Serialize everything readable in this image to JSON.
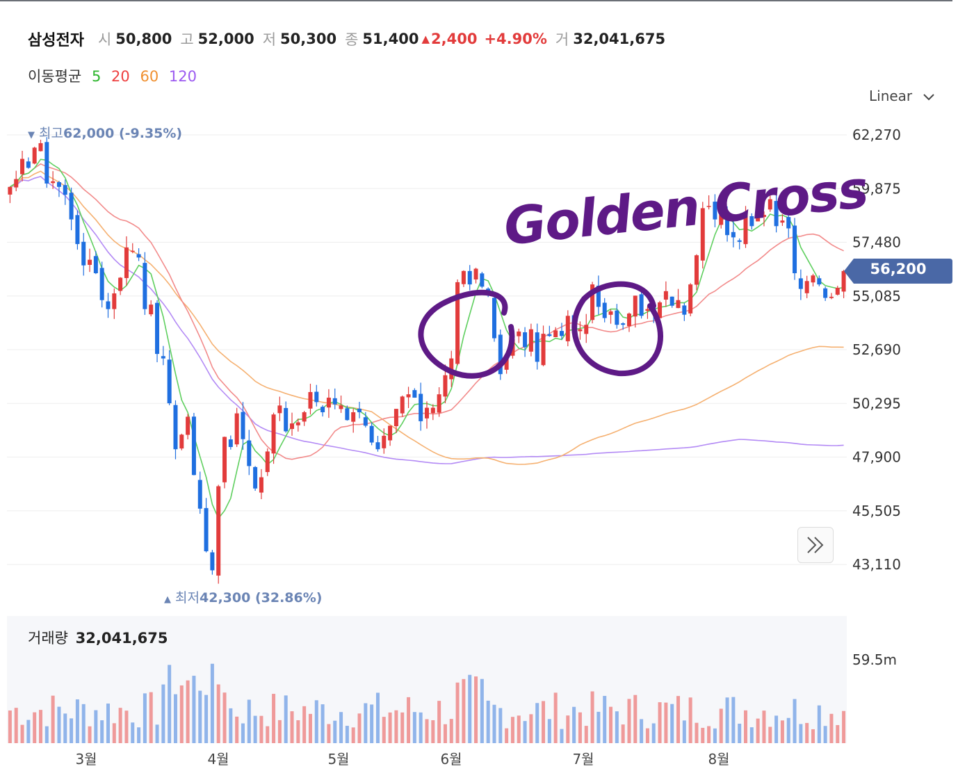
{
  "header": {
    "name": "삼성전자",
    "open_label": "시",
    "open": "50,800",
    "high_label": "고",
    "high": "52,000",
    "low_label": "저",
    "low": "50,300",
    "close_label": "종",
    "close": "51,400",
    "change_arrow": "▲",
    "change": "2,400",
    "change_pct": "+4.90%",
    "volume_label": "거",
    "volume": "32,041,675"
  },
  "moving_average": {
    "label": "이동평균",
    "periods": [
      "5",
      "20",
      "60",
      "120"
    ],
    "colors": [
      "#2bb52b",
      "#ee4040",
      "#f09030",
      "#9b59f0"
    ]
  },
  "scale_selector": {
    "value": "Linear",
    "icon": "chevron-down-icon"
  },
  "high_marker": {
    "arrow": "▼",
    "label": "최고",
    "value": "62,000 (-9.35%)"
  },
  "low_marker": {
    "arrow": "▲",
    "label": "최저",
    "value": "42,300 (32.86%)"
  },
  "current_price": "56,200",
  "annotation": "Golden Cross",
  "volume_panel": {
    "label": "거래량",
    "value": "32,041,675",
    "axis_label": "59.5m"
  },
  "expand_button": {
    "icon": "double-chevron-right-icon"
  },
  "colors": {
    "up": "#e23b3b",
    "down": "#1f6fe0",
    "vol_up": "#ef9a9a",
    "vol_down": "#90b4ea",
    "tag": "#4a68a6",
    "annotation": "#5e1a86"
  },
  "chart_data": {
    "type": "candlestick",
    "y_ticks": [
      "62,270",
      "59,875",
      "57,480",
      "55,085",
      "52,690",
      "50,295",
      "47,900",
      "45,505",
      "43,110"
    ],
    "y_range": [
      43110,
      62270
    ],
    "x_ticks": [
      "3월",
      "4월",
      "5월",
      "6월",
      "7월",
      "8월"
    ],
    "close": [
      59950,
      60300,
      61200,
      60800,
      61700,
      61900,
      60100,
      60200,
      59950,
      59600,
      58500,
      57400,
      56450,
      56700,
      56100,
      54900,
      54500,
      55200,
      55900,
      57250,
      57100,
      56800,
      54500,
      54700,
      52500,
      52300,
      50300,
      48250,
      48900,
      49700,
      47100,
      45600,
      43700,
      42850,
      46600,
      48800,
      48350,
      49850,
      48700,
      47500,
      46500,
      47000,
      48150,
      49800,
      50200,
      49050,
      49400,
      49450,
      49900,
      50800,
      50350,
      49900,
      50550,
      50250,
      50200,
      49550,
      49900,
      49900,
      49300,
      48550,
      48250,
      48850,
      49300,
      50050,
      50600,
      50700,
      50550,
      49500,
      50100,
      50100,
      50700,
      51550,
      52300,
      55700,
      56200,
      55600,
      56300,
      55500,
      55200,
      53200,
      51600,
      52300,
      53150,
      53500,
      52800,
      53600,
      52150,
      53400,
      53300,
      53550,
      53300,
      54200,
      53550,
      53600,
      53800,
      55600,
      54600,
      54100,
      54400,
      53800,
      53800,
      54300,
      55100,
      54200,
      54500,
      54300,
      54800,
      55300,
      54650,
      54900,
      54250,
      55600,
      56900,
      59000,
      59100,
      58500,
      58700,
      57800,
      57700,
      57500,
      58700,
      58200,
      58700,
      58700,
      59400,
      58200,
      58450,
      58100,
      56100,
      55400,
      55750,
      56000,
      55600,
      55000,
      55050,
      55450,
      56200
    ],
    "volume_max": "59.5m"
  }
}
